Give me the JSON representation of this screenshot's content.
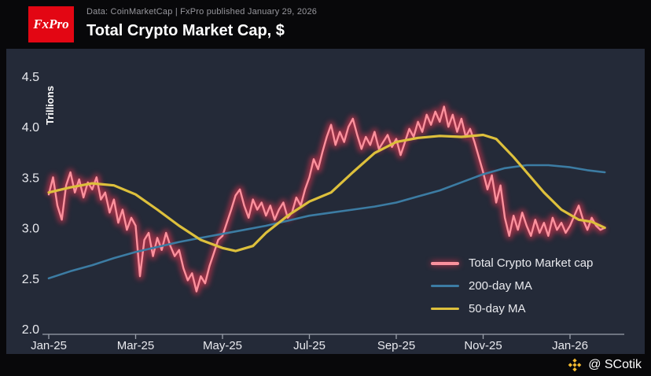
{
  "header": {
    "logo_text": "FxPro",
    "meta": "Data: CoinMarketCap | FxPro published January 29, 2026",
    "title": "Total Crypto Market Cap, $"
  },
  "footer": {
    "handle": "@ SCotik",
    "binance_icon_color": "#F3BA2F"
  },
  "colors": {
    "background": "#08080a",
    "panel": "#242a38",
    "axis": "#9aa0ab",
    "tick_text": "#e8e9ee",
    "logo_red": "#e30613"
  },
  "chart_data": {
    "type": "line",
    "title": "Total Crypto Market Cap, $",
    "ylabel": "Trillions",
    "ylim": [
      2.0,
      4.5
    ],
    "y_ticks": [
      2.0,
      2.5,
      3.0,
      3.5,
      4.0,
      4.5
    ],
    "y_tick_labels": [
      "2.0",
      "2.5",
      "3.0",
      "3.5",
      "4.0",
      "4.5"
    ],
    "x_tick_labels": [
      "Jan-25",
      "Mar-25",
      "May-25",
      "Jul-25",
      "Sep-25",
      "Nov-25",
      "Jan-26"
    ],
    "x_tick_months": [
      0,
      2,
      4,
      6,
      8,
      10,
      12
    ],
    "x_unit": "months since Jan-2025",
    "x_range_months": [
      0,
      12.8
    ],
    "grid": false,
    "legend_position": "inside lower right",
    "series": [
      {
        "name": "Total Crypto Market cap",
        "color": "#fb919d",
        "glow": "#e6344f",
        "step_months": 0.1,
        "values": [
          3.33,
          3.5,
          3.22,
          3.08,
          3.42,
          3.55,
          3.35,
          3.48,
          3.3,
          3.45,
          3.38,
          3.5,
          3.28,
          3.35,
          3.15,
          3.28,
          3.05,
          3.18,
          2.98,
          3.1,
          3.02,
          2.52,
          2.88,
          2.95,
          2.72,
          2.9,
          2.78,
          2.95,
          2.82,
          2.72,
          2.78,
          2.6,
          2.48,
          2.55,
          2.37,
          2.52,
          2.45,
          2.62,
          2.75,
          2.88,
          2.92,
          3.05,
          3.18,
          3.32,
          3.38,
          3.22,
          3.1,
          3.28,
          3.18,
          3.25,
          3.12,
          3.22,
          3.08,
          3.18,
          3.25,
          3.1,
          3.15,
          3.3,
          3.22,
          3.38,
          3.5,
          3.68,
          3.58,
          3.75,
          3.9,
          4.02,
          3.82,
          3.95,
          3.85,
          4.0,
          4.08,
          3.92,
          3.78,
          3.9,
          3.82,
          3.95,
          3.78,
          3.85,
          3.92,
          3.8,
          3.88,
          3.72,
          3.85,
          3.98,
          3.9,
          4.05,
          3.95,
          4.12,
          4.02,
          4.15,
          4.05,
          4.2,
          4.0,
          4.12,
          3.95,
          4.08,
          3.9,
          3.98,
          3.85,
          3.7,
          3.55,
          3.38,
          3.52,
          3.25,
          3.42,
          3.1,
          2.92,
          3.12,
          2.98,
          3.15,
          3.02,
          2.92,
          3.08,
          2.95,
          3.05,
          2.92,
          3.1,
          2.98,
          3.05,
          2.95,
          3.02,
          3.12,
          3.22,
          3.08,
          2.98,
          3.1,
          3.02,
          2.98,
          3.0
        ]
      },
      {
        "name": "200-day MA",
        "color": "#3c7ca3",
        "points": [
          [
            0,
            2.5
          ],
          [
            0.5,
            2.57
          ],
          [
            1,
            2.63
          ],
          [
            1.5,
            2.7
          ],
          [
            2,
            2.76
          ],
          [
            2.5,
            2.81
          ],
          [
            3,
            2.86
          ],
          [
            3.5,
            2.9
          ],
          [
            4,
            2.94
          ],
          [
            4.5,
            2.98
          ],
          [
            5,
            3.02
          ],
          [
            5.5,
            3.07
          ],
          [
            6,
            3.12
          ],
          [
            6.5,
            3.15
          ],
          [
            7,
            3.18
          ],
          [
            7.5,
            3.21
          ],
          [
            8,
            3.25
          ],
          [
            8.5,
            3.31
          ],
          [
            9,
            3.37
          ],
          [
            9.5,
            3.45
          ],
          [
            10,
            3.53
          ],
          [
            10.5,
            3.59
          ],
          [
            11,
            3.62
          ],
          [
            11.5,
            3.62
          ],
          [
            12,
            3.6
          ],
          [
            12.4,
            3.57
          ],
          [
            12.8,
            3.55
          ]
        ]
      },
      {
        "name": "50-day MA",
        "color": "#ddc03c",
        "points": [
          [
            0,
            3.35
          ],
          [
            0.5,
            3.4
          ],
          [
            1,
            3.44
          ],
          [
            1.5,
            3.42
          ],
          [
            2,
            3.33
          ],
          [
            2.5,
            3.18
          ],
          [
            3,
            3.02
          ],
          [
            3.5,
            2.88
          ],
          [
            4,
            2.8
          ],
          [
            4.3,
            2.77
          ],
          [
            4.7,
            2.82
          ],
          [
            5,
            2.95
          ],
          [
            5.5,
            3.12
          ],
          [
            6,
            3.26
          ],
          [
            6.5,
            3.35
          ],
          [
            7,
            3.55
          ],
          [
            7.5,
            3.74
          ],
          [
            8,
            3.85
          ],
          [
            8.5,
            3.89
          ],
          [
            9,
            3.91
          ],
          [
            9.5,
            3.9
          ],
          [
            10,
            3.92
          ],
          [
            10.3,
            3.88
          ],
          [
            10.7,
            3.7
          ],
          [
            11,
            3.55
          ],
          [
            11.4,
            3.35
          ],
          [
            11.8,
            3.18
          ],
          [
            12.2,
            3.08
          ],
          [
            12.5,
            3.06
          ],
          [
            12.8,
            3.0
          ]
        ]
      }
    ]
  }
}
